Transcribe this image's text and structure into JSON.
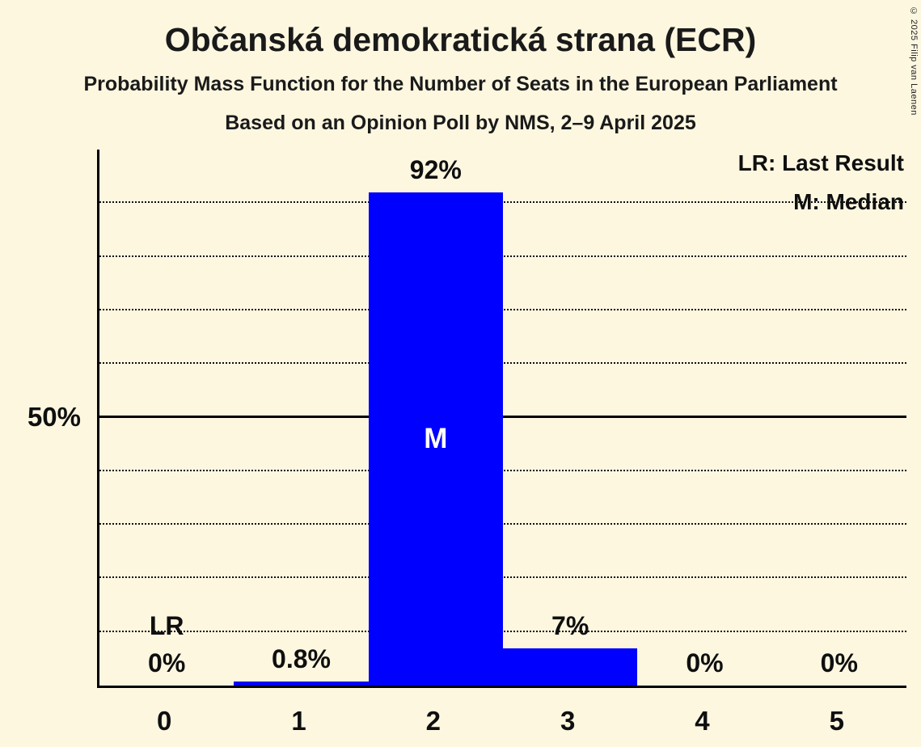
{
  "chart_data": {
    "type": "bar",
    "title": "Občanská demokratická strana (ECR)",
    "subtitle1": "Probability Mass Function for the Number of Seats in the European Parliament",
    "subtitle2": "Based on an Opinion Poll by NMS, 2–9 April 2025",
    "copyright": "© 2025 Filip van Laenen",
    "categories": [
      "0",
      "1",
      "2",
      "3",
      "4",
      "5"
    ],
    "values": [
      0,
      0.8,
      92,
      7,
      0,
      0
    ],
    "bar_labels": [
      "0%",
      "0.8%",
      "92%",
      "7%",
      "0%",
      "0%"
    ],
    "legend": {
      "lr": "LR: Last Result",
      "m": "M: Median"
    },
    "lr_marker": "LR",
    "median_marker": "M",
    "lr_index": 0,
    "median_index": 2,
    "y_axis_label_50": "50%",
    "xlabel": "",
    "ylabel": "",
    "ylim": [
      0,
      100
    ],
    "gridline_step_pct": 10,
    "grid": "dotted, solid line at 50%",
    "legend_position": "top-right",
    "bar_color": "#0000ff",
    "background_color": "#fdf7e0"
  }
}
